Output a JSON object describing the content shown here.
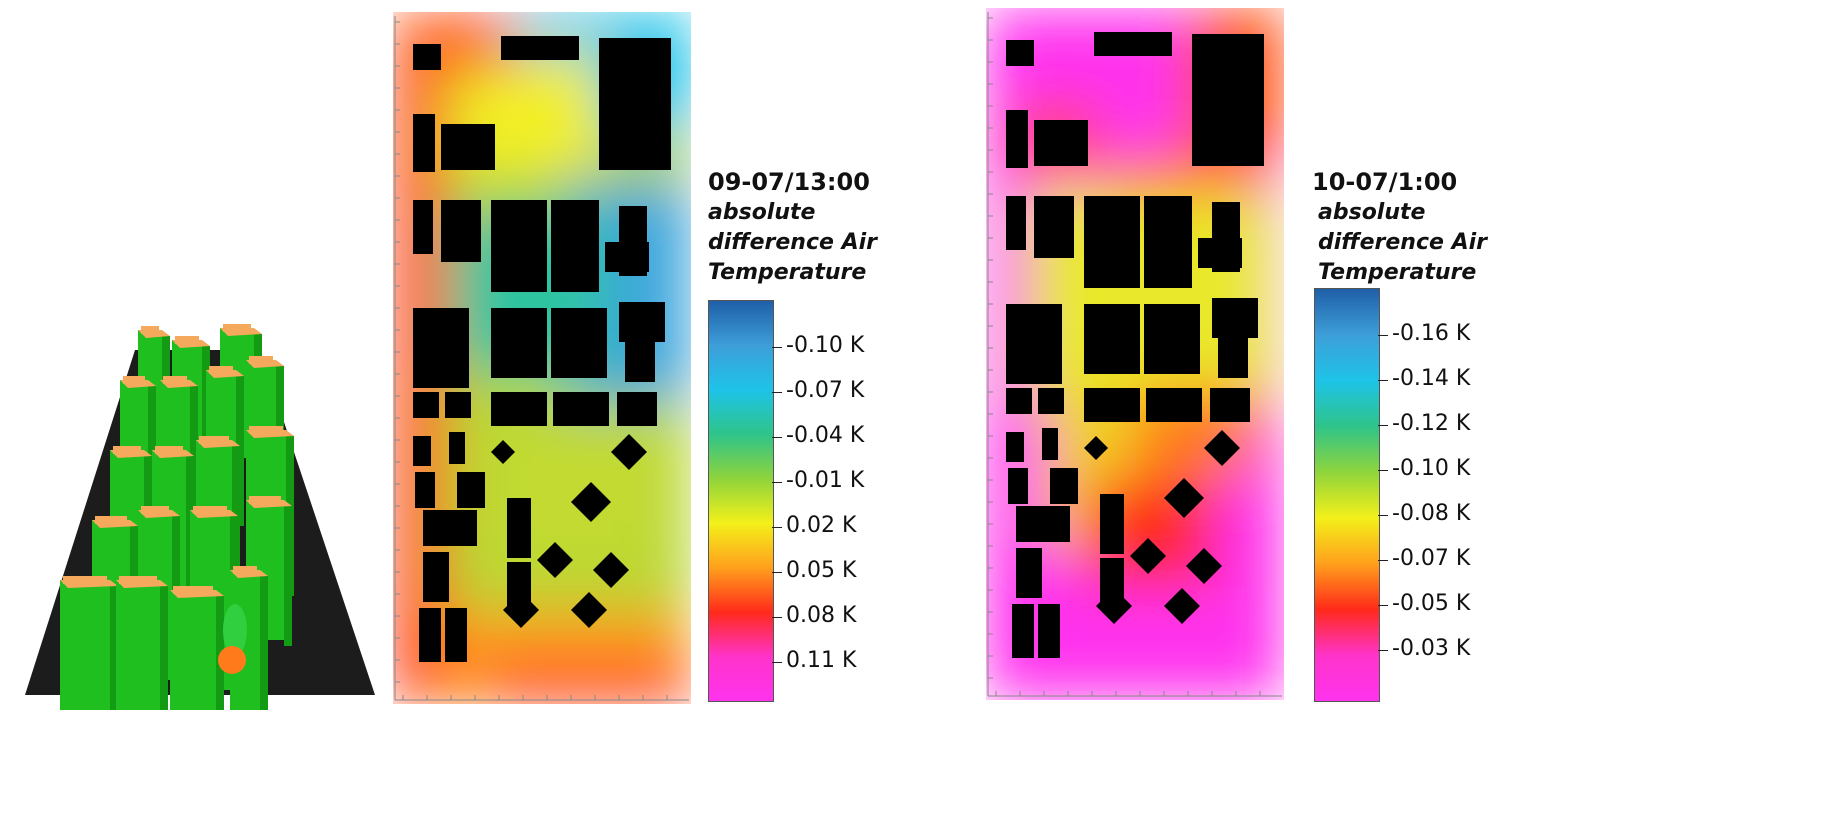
{
  "legends": [
    {
      "timestamp": "09-07/13:00",
      "label": "absolute difference Air Temperature",
      "ticks": [
        "-0.10  K",
        "-0.07  K",
        "-0.04  K",
        "-0.01  K",
        "0.02  K",
        "0.05  K",
        "0.08  K",
        "0.11  K"
      ],
      "gradient": [
        "#1f5fa8",
        "#3d9ed8",
        "#1ec3e8",
        "#2ec48a",
        "#8fd43c",
        "#f3f01a",
        "#ffa01c",
        "#ff2a1a",
        "#ff33c9",
        "#ff33ee"
      ]
    },
    {
      "timestamp": "10-07/1:00",
      "label": "absolute difference Air Temperature",
      "ticks": [
        "-0.16  K",
        "-0.14  K",
        "-0.12  K",
        "-0.10  K",
        "-0.08  K",
        "-0.07  K",
        "-0.05  K",
        "-0.03  K"
      ],
      "gradient": [
        "#1f5fa8",
        "#3d9ed8",
        "#1ec3e8",
        "#2ec48a",
        "#8fd43c",
        "#f3f01a",
        "#ffa01c",
        "#ff2a1a",
        "#ff33c9",
        "#ff33ee"
      ]
    }
  ],
  "chart_data": {
    "type": "heatmap",
    "maps": [
      {
        "timestamp": "09-07/13:00",
        "legend": "absolute difference Air Temperature",
        "ticks": [
          -0.1,
          -0.07,
          -0.04,
          -0.01,
          0.02,
          0.05,
          0.08,
          0.11
        ],
        "unit": "K"
      },
      {
        "timestamp": "10-07/1:00",
        "legend": "absolute difference Air Temperature",
        "ticks": [
          -0.16,
          -0.14,
          -0.12,
          -0.1,
          -0.08,
          -0.07,
          -0.05,
          -0.03
        ],
        "unit": "K"
      }
    ]
  }
}
